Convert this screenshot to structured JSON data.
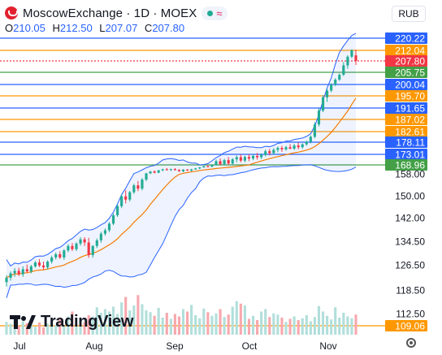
{
  "header": {
    "title": "MoscowExchange · 1D · MOEX",
    "currency": "RUB",
    "ohlc": [
      {
        "key": "O",
        "value": "210.05"
      },
      {
        "key": "H",
        "value": "212.50"
      },
      {
        "key": "L",
        "value": "207.07"
      },
      {
        "key": "C",
        "value": "207.80"
      }
    ],
    "watermark": "TradingView"
  },
  "colors": {
    "up": "#22ab94",
    "down": "#f23645",
    "up_volume": "#b2dfdb",
    "down_volume": "#f7a8ae",
    "band": "#2962ff",
    "ma": "#f57c00",
    "label_blue": "#2962ff",
    "label_orange": "#ff9800",
    "label_green": "#43a047",
    "label_red": "#f23645",
    "label_plain": "#131722"
  },
  "chart_data": {
    "type": "candlestick",
    "x_labels": [
      "Jul",
      "Aug",
      "Sep",
      "Oct",
      "Nov"
    ],
    "price_axis": [
      "220.22",
      "212.04",
      "207.80",
      "205.75",
      "200.04",
      "195.70",
      "191.65",
      "187.02",
      "182.61",
      "178.11",
      "173.01",
      "168.96",
      "158.00",
      "150.00",
      "142.00",
      "134.50",
      "126.50",
      "118.50",
      "112.50",
      "109.06"
    ],
    "level_lines": [
      {
        "label": "220.22",
        "value": 220.22,
        "style": "blue"
      },
      {
        "label": "212.04",
        "value": 212.04,
        "style": "orange"
      },
      {
        "label": "207.80",
        "value": 207.8,
        "style": "red"
      },
      {
        "label": "205.75",
        "value": 205.75,
        "style": "green"
      },
      {
        "label": "200.04",
        "value": 200.04,
        "style": "blue"
      },
      {
        "label": "195.70",
        "value": 195.7,
        "style": "orange"
      },
      {
        "label": "191.65",
        "value": 191.65,
        "style": "blue"
      },
      {
        "label": "187.02",
        "value": 187.02,
        "style": "orange"
      },
      {
        "label": "182.61",
        "value": 182.61,
        "style": "orange"
      },
      {
        "label": "178.11",
        "value": 178.11,
        "style": "blue"
      },
      {
        "label": "173.01",
        "value": 173.01,
        "style": "blue"
      },
      {
        "label": "168.96",
        "value": 168.96,
        "style": "green"
      },
      {
        "label": "109.06",
        "value": 109.06,
        "style": "orange"
      }
    ],
    "candles_ohlc": [
      [
        121.0,
        123.2,
        119.6,
        122.4
      ],
      [
        122.4,
        124.4,
        121.5,
        123.8
      ],
      [
        123.8,
        125.5,
        122.7,
        124.6
      ],
      [
        124.6,
        125.6,
        122.9,
        123.5
      ],
      [
        123.5,
        126.0,
        122.7,
        125.1
      ],
      [
        125.1,
        126.6,
        124.0,
        124.4
      ],
      [
        124.4,
        126.5,
        123.8,
        126.0
      ],
      [
        126.0,
        127.8,
        125.6,
        127.3
      ],
      [
        127.3,
        128.4,
        125.8,
        126.3
      ],
      [
        126.3,
        127.6,
        124.9,
        125.7
      ],
      [
        125.7,
        128.0,
        125.1,
        127.6
      ],
      [
        127.6,
        129.6,
        126.9,
        129.0
      ],
      [
        129.0,
        130.7,
        128.3,
        130.1
      ],
      [
        130.1,
        131.1,
        128.5,
        129.0
      ],
      [
        129.0,
        131.8,
        128.2,
        131.4
      ],
      [
        131.4,
        133.5,
        130.8,
        132.9
      ],
      [
        132.9,
        133.9,
        131.2,
        131.8
      ],
      [
        131.8,
        134.2,
        131.2,
        133.7
      ],
      [
        133.7,
        135.8,
        133.0,
        135.1
      ],
      [
        135.1,
        135.8,
        132.9,
        134.1
      ],
      [
        134.1,
        135.6,
        128.9,
        129.8
      ],
      [
        129.8,
        133.2,
        128.9,
        132.9
      ],
      [
        132.9,
        135.4,
        132.2,
        134.8
      ],
      [
        134.8,
        137.5,
        134.0,
        136.9
      ],
      [
        136.9,
        138.6,
        136.3,
        138.0
      ],
      [
        138.0,
        140.6,
        137.4,
        140.1
      ],
      [
        140.1,
        143.5,
        139.6,
        142.9
      ],
      [
        142.9,
        146.9,
        142.3,
        146.2
      ],
      [
        146.2,
        150.5,
        145.5,
        149.8
      ],
      [
        149.8,
        152.0,
        147.2,
        148.6
      ],
      [
        148.6,
        151.8,
        147.9,
        151.3
      ],
      [
        151.3,
        154.4,
        150.7,
        153.8
      ],
      [
        153.8,
        155.4,
        151.7,
        152.6
      ],
      [
        152.6,
        156.5,
        152.0,
        155.9
      ],
      [
        155.9,
        159.2,
        155.3,
        158.6
      ],
      [
        158.6,
        161.5,
        157.9,
        160.9
      ],
      [
        160.9,
        162.3,
        158.6,
        159.4
      ],
      [
        159.4,
        162.9,
        158.9,
        162.3
      ],
      [
        162.3,
        164.3,
        161.2,
        163.6
      ],
      [
        163.6,
        165.1,
        162.0,
        162.9
      ],
      [
        162.9,
        164.4,
        161.3,
        163.8
      ],
      [
        163.8,
        165.0,
        162.1,
        162.6
      ],
      [
        162.6,
        163.8,
        160.6,
        161.1
      ],
      [
        161.1,
        163.7,
        160.1,
        163.2
      ],
      [
        163.2,
        163.9,
        161.6,
        162.1
      ],
      [
        162.1,
        164.2,
        160.8,
        163.5
      ],
      [
        163.5,
        165.3,
        162.9,
        164.7
      ],
      [
        164.7,
        166.4,
        163.8,
        165.9
      ],
      [
        165.9,
        167.9,
        165.4,
        167.3
      ],
      [
        167.3,
        168.6,
        166.1,
        166.8
      ],
      [
        166.8,
        169.0,
        166.1,
        168.6
      ],
      [
        168.6,
        171.0,
        168.1,
        170.4
      ],
      [
        170.4,
        171.5,
        168.5,
        169.2
      ],
      [
        169.2,
        171.3,
        168.6,
        170.8
      ],
      [
        170.8,
        172.0,
        168.8,
        169.5
      ],
      [
        169.5,
        171.6,
        168.9,
        171.1
      ],
      [
        171.1,
        172.6,
        170.0,
        171.9
      ],
      [
        171.9,
        173.0,
        170.0,
        170.6
      ],
      [
        170.6,
        172.5,
        170.0,
        172.0
      ],
      [
        172.0,
        173.1,
        170.4,
        171.4
      ],
      [
        171.4,
        173.0,
        170.8,
        172.4
      ],
      [
        172.4,
        173.6,
        171.0,
        171.9
      ],
      [
        171.9,
        173.4,
        171.2,
        172.8
      ],
      [
        172.8,
        175.0,
        172.2,
        174.3
      ],
      [
        174.3,
        175.3,
        172.6,
        173.5
      ],
      [
        173.5,
        175.6,
        172.9,
        174.9
      ],
      [
        174.9,
        176.3,
        173.9,
        175.7
      ],
      [
        175.7,
        176.6,
        174.0,
        175.1
      ],
      [
        175.1,
        176.6,
        174.5,
        176.0
      ],
      [
        176.0,
        177.3,
        175.1,
        175.4
      ],
      [
        175.4,
        177.4,
        174.8,
        176.7
      ],
      [
        176.7,
        178.0,
        175.1,
        176.0
      ],
      [
        176.0,
        177.6,
        175.4,
        177.2
      ],
      [
        177.2,
        178.8,
        176.6,
        178.3
      ],
      [
        178.3,
        181.0,
        177.6,
        180.4
      ],
      [
        180.4,
        186.0,
        179.8,
        185.2
      ],
      [
        185.2,
        191.5,
        184.5,
        190.6
      ],
      [
        190.6,
        196.0,
        190.0,
        195.2
      ],
      [
        195.2,
        198.4,
        193.7,
        197.7
      ],
      [
        197.7,
        200.6,
        197.1,
        200.0
      ],
      [
        200.0,
        203.0,
        199.4,
        202.3
      ],
      [
        202.3,
        205.2,
        201.7,
        204.6
      ],
      [
        204.6,
        207.6,
        204.0,
        207.0
      ],
      [
        207.0,
        210.1,
        206.4,
        209.5
      ],
      [
        209.5,
        212.8,
        208.9,
        212.2
      ],
      [
        210.05,
        212.5,
        207.07,
        207.8
      ]
    ],
    "volume_relative": [
      0.21,
      0.18,
      0.24,
      0.15,
      0.22,
      0.19,
      0.16,
      0.13,
      0.2,
      0.12,
      0.18,
      0.22,
      0.16,
      0.25,
      0.14,
      0.3,
      0.38,
      0.18,
      0.25,
      0.21,
      0.32,
      0.3,
      0.45,
      0.36,
      0.42,
      0.38,
      0.46,
      0.34,
      0.53,
      0.62,
      0.4,
      0.48,
      0.65,
      0.5,
      0.4,
      0.37,
      0.31,
      0.44,
      0.28,
      0.36,
      0.26,
      0.34,
      0.3,
      0.42,
      0.38,
      0.49,
      0.32,
      0.27,
      0.43,
      0.37,
      0.31,
      0.35,
      0.42,
      0.29,
      0.33,
      0.46,
      0.55,
      0.51,
      0.48,
      0.26,
      0.31,
      0.24,
      0.38,
      0.42,
      0.29,
      0.35,
      0.33,
      0.28,
      0.21,
      0.26,
      0.3,
      0.24,
      0.27,
      0.32,
      0.22,
      0.29,
      0.47,
      0.38,
      0.31,
      0.25,
      0.45,
      0.28,
      0.36,
      0.3,
      0.27,
      0.33
    ]
  }
}
